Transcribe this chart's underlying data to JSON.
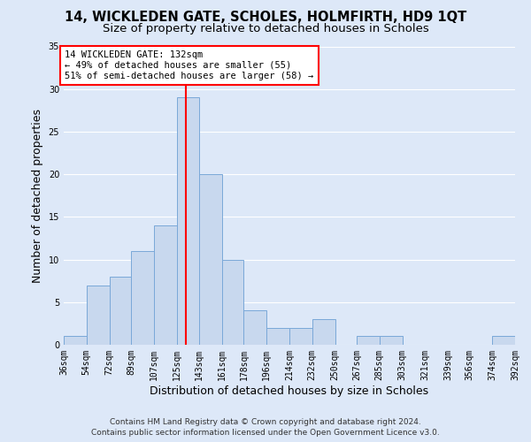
{
  "title1": "14, WICKLEDEN GATE, SCHOLES, HOLMFIRTH, HD9 1QT",
  "title2": "Size of property relative to detached houses in Scholes",
  "xlabel": "Distribution of detached houses by size in Scholes",
  "ylabel": "Number of detached properties",
  "bar_color": "#c8d8ee",
  "bar_edge_color": "#7aa8d8",
  "vline_x": 132,
  "vline_color": "red",
  "annotation_line1": "14 WICKLEDEN GATE: 132sqm",
  "annotation_line2": "← 49% of detached houses are smaller (55)",
  "annotation_line3": "51% of semi-detached houses are larger (58) →",
  "annotation_box_facecolor": "white",
  "annotation_box_edgecolor": "red",
  "bins": [
    36,
    54,
    72,
    89,
    107,
    125,
    143,
    161,
    178,
    196,
    214,
    232,
    250,
    267,
    285,
    303,
    321,
    339,
    356,
    374,
    392
  ],
  "counts": [
    1,
    7,
    8,
    11,
    14,
    29,
    20,
    10,
    4,
    2,
    2,
    3,
    0,
    1,
    1,
    0,
    0,
    0,
    0,
    1
  ],
  "tick_labels": [
    "36sqm",
    "54sqm",
    "72sqm",
    "89sqm",
    "107sqm",
    "125sqm",
    "143sqm",
    "161sqm",
    "178sqm",
    "196sqm",
    "214sqm",
    "232sqm",
    "250sqm",
    "267sqm",
    "285sqm",
    "303sqm",
    "321sqm",
    "339sqm",
    "356sqm",
    "374sqm",
    "392sqm"
  ],
  "ylim": [
    0,
    35
  ],
  "yticks": [
    0,
    5,
    10,
    15,
    20,
    25,
    30,
    35
  ],
  "footer1": "Contains HM Land Registry data © Crown copyright and database right 2024.",
  "footer2": "Contains public sector information licensed under the Open Government Licence v3.0.",
  "background_color": "#dde8f8",
  "plot_background_color": "#dde8f8",
  "grid_color": "white",
  "title_fontsize": 10.5,
  "subtitle_fontsize": 9.5,
  "axis_label_fontsize": 9,
  "tick_fontsize": 7,
  "footer_fontsize": 6.5
}
